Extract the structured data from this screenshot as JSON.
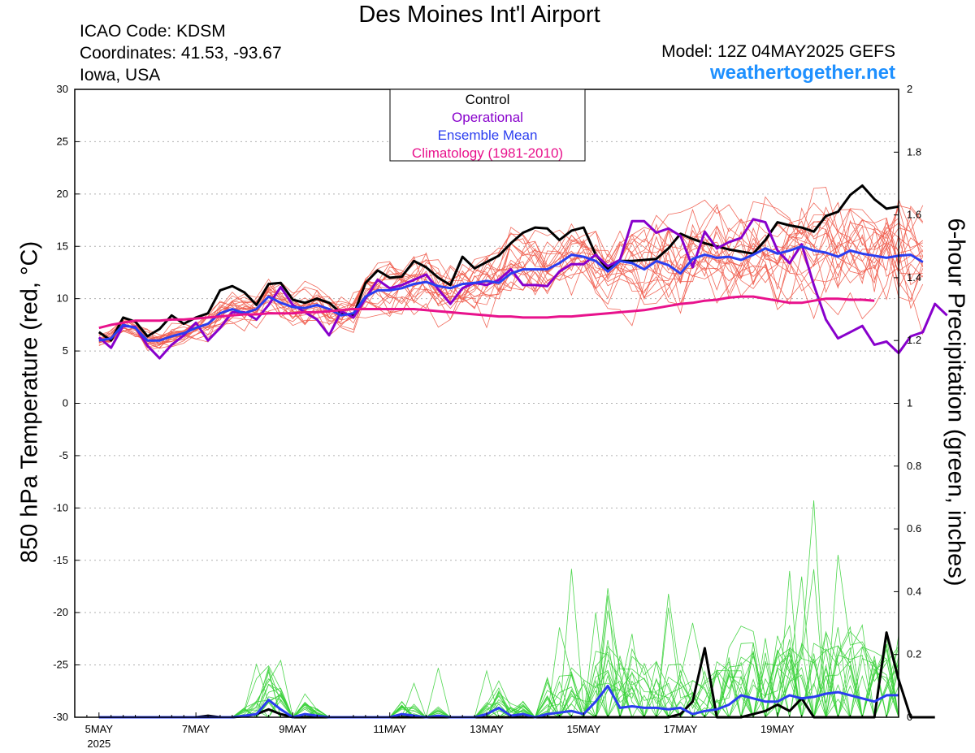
{
  "header": {
    "title": "Des Moines Int'l Airport",
    "icao": "ICAO Code: KDSM",
    "coordinates": "Coordinates: 41.53, -93.67",
    "location": "Iowa, USA",
    "model": "Model: 12Z 04MAY2025 GEFS",
    "brand": "weathertogether.net"
  },
  "chart_data": {
    "type": "line",
    "ylabel": "850 hPa Temperature (red, °C)",
    "y2label": "6-hour Precipitation (green, inches)",
    "ylim": [
      -30,
      30
    ],
    "y2lim": [
      0,
      2
    ],
    "yticks": [
      "30",
      "25",
      "20",
      "15",
      "10",
      "5",
      "0",
      "-5",
      "-10",
      "-15",
      "-20",
      "-25",
      "-30"
    ],
    "y2ticks": [
      "2",
      "1.8",
      "1.6",
      "1.4",
      "1.2",
      "1",
      "0.8",
      "0.6",
      "0.4",
      "0.2",
      "0"
    ],
    "xlim": [
      -0.5,
      16.5
    ],
    "xticks": [
      {
        "label": "5MAY",
        "sub": "2025",
        "x": 0
      },
      {
        "label": "7MAY",
        "sub": "",
        "x": 2
      },
      {
        "label": "9MAY",
        "sub": "",
        "x": 4
      },
      {
        "label": "11MAY",
        "sub": "",
        "x": 6
      },
      {
        "label": "13MAY",
        "sub": "",
        "x": 8
      },
      {
        "label": "15MAY",
        "sub": "",
        "x": 10
      },
      {
        "label": "17MAY",
        "sub": "",
        "x": 12
      },
      {
        "label": "19MAY",
        "sub": "",
        "x": 14
      }
    ],
    "legend": {
      "position": "top-center",
      "entries": [
        {
          "label": "Control",
          "color": "#000000"
        },
        {
          "label": "Operational",
          "color": "#8800cc"
        },
        {
          "label": "Ensemble Mean",
          "color": "#2a3df0"
        },
        {
          "label": "Climatology (1981-2010)",
          "color": "#e8128c"
        }
      ]
    },
    "colors": {
      "members_temp": "#f05a4a",
      "members_precip": "#3ad23a",
      "control": "#000000",
      "operational": "#8800cc",
      "mean": "#2a3df0",
      "climatology": "#e8128c"
    },
    "time_step_days": 0.25,
    "series": [
      {
        "name": "Control",
        "axis": "temp",
        "values": [
          6.8,
          6,
          8.2,
          7.8,
          6.4,
          7.1,
          8.4,
          7.6,
          8.2,
          8.6,
          10.8,
          11.2,
          10.6,
          9.4,
          11.4,
          11.5,
          9.9,
          9.6,
          10,
          9.6,
          8.6,
          8.4,
          11.5,
          12.7,
          12,
          12.1,
          13.6,
          13,
          12,
          11.3,
          14,
          12.9,
          13.5,
          14.1,
          15.3,
          16.3,
          16.8,
          16.7,
          15.6,
          16.5,
          16.8,
          14.2,
          12.8,
          13.6,
          13.6,
          13.7,
          13.8,
          14.8,
          16.2,
          15.7,
          15.3,
          15,
          14.7,
          14.5,
          14.3,
          15.6,
          17.3,
          17,
          16.8,
          16.4,
          17.9,
          18.3,
          19.9,
          20.8,
          19.5,
          18.6,
          18.8
        ]
      },
      {
        "name": "Operational",
        "axis": "temp",
        "values": [
          6.3,
          5.3,
          7.4,
          7.3,
          5.5,
          4.3,
          5.6,
          6.5,
          7.7,
          6,
          7.2,
          8.7,
          8.7,
          8,
          9.4,
          11.1,
          9.4,
          8.7,
          8,
          6.5,
          8.8,
          8.2,
          10,
          11.8,
          11,
          11.3,
          11.8,
          12.3,
          10.9,
          9.5,
          11,
          11.5,
          11.3,
          11.8,
          12.8,
          11.3,
          11.3,
          11.2,
          12.6,
          13.3,
          13.3,
          14.2,
          13.1,
          13.7,
          17.4,
          17.4,
          16.3,
          16.7,
          16,
          13,
          16.4,
          14.8,
          15.4,
          15.8,
          17.6,
          17.3,
          14.6,
          13.4,
          15.2,
          11.3,
          8,
          6.2,
          6.8,
          7.4,
          5.6,
          5.9,
          4.8,
          6.4,
          6.8,
          9.5,
          8.4
        ]
      },
      {
        "name": "Ensemble Mean",
        "axis": "temp",
        "values": [
          6,
          6.2,
          7.5,
          7.2,
          6,
          6,
          6.4,
          6.7,
          7.2,
          7.6,
          8.6,
          9,
          8.6,
          9,
          10.2,
          9.6,
          9.2,
          9.1,
          9.4,
          9,
          8.4,
          8.6,
          10.2,
          10.8,
          10.8,
          11,
          11.4,
          11.6,
          11.2,
          11,
          11.4,
          11.5,
          11.7,
          11.5,
          12.4,
          12.8,
          12.8,
          12.8,
          13.4,
          14.2,
          14,
          13.6,
          12.6,
          13.6,
          13.4,
          12.8,
          13.6,
          13.2,
          12.4,
          13.8,
          14.2,
          13.9,
          14,
          13.7,
          14.2,
          14.8,
          14.3,
          14.6,
          15,
          14.6,
          14.4,
          14,
          14.6,
          14.3,
          14.1,
          13.9,
          14.1,
          14.2,
          13.5
        ]
      },
      {
        "name": "Climatology (1981-2010)",
        "axis": "temp",
        "values": [
          7.2,
          7.5,
          7.7,
          7.9,
          7.9,
          7.9,
          8,
          8,
          8.1,
          8.2,
          8.3,
          8.4,
          8.5,
          8.5,
          8.6,
          8.6,
          8.6,
          8.7,
          8.7,
          8.8,
          8.9,
          9,
          9,
          9,
          9,
          9,
          9,
          8.9,
          8.8,
          8.7,
          8.6,
          8.5,
          8.4,
          8.3,
          8.3,
          8.2,
          8.2,
          8.2,
          8.3,
          8.3,
          8.4,
          8.5,
          8.6,
          8.7,
          8.8,
          8.9,
          9.1,
          9.3,
          9.5,
          9.6,
          9.8,
          9.9,
          10.1,
          10.2,
          10.2,
          10,
          9.8,
          9.6,
          9.6,
          9.8,
          10,
          10,
          9.9,
          9.9,
          9.8
        ]
      },
      {
        "name": "Control",
        "axis": "precip",
        "values": [
          0,
          0,
          0,
          0,
          0,
          0,
          0,
          0,
          0,
          0.005,
          0,
          0,
          0.003,
          0.01,
          0.025,
          0.01,
          0,
          0,
          0,
          0,
          0,
          0,
          0,
          0,
          0,
          0,
          0,
          0,
          0,
          0,
          0,
          0,
          0,
          0,
          0,
          0,
          0,
          0,
          0,
          0,
          0,
          0,
          0,
          0,
          0,
          0,
          0,
          0,
          0.01,
          0.05,
          0.22,
          0,
          0,
          0,
          0.01,
          0.02,
          0.04,
          0.02,
          0.06,
          0,
          0,
          0,
          0,
          0,
          0,
          0.27,
          0.12,
          0,
          0,
          0
        ]
      },
      {
        "name": "Ensemble Mean",
        "axis": "precip",
        "values": [
          0,
          0,
          0,
          0,
          0,
          0,
          0,
          0,
          0,
          0,
          0,
          0,
          0.005,
          0.01,
          0.055,
          0.025,
          0,
          0.01,
          0.005,
          0,
          0,
          0,
          0,
          0,
          0,
          0.01,
          0.005,
          0,
          0.005,
          0,
          0,
          0,
          0.01,
          0.03,
          0.005,
          0.01,
          0,
          0.01,
          0.015,
          0.02,
          0.01,
          0.05,
          0.1,
          0.03,
          0.035,
          0.03,
          0.03,
          0.025,
          0.03,
          0.01,
          0.02,
          0.025,
          0.04,
          0.07,
          0.06,
          0.05,
          0.05,
          0.07,
          0.06,
          0.065,
          0.075,
          0.08,
          0.07,
          0.06,
          0.05,
          0.07,
          0.07
        ]
      }
    ]
  }
}
